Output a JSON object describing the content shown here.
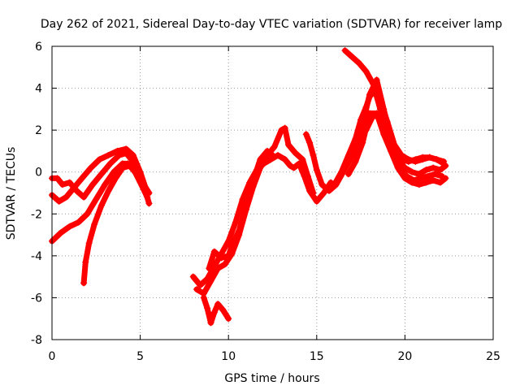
{
  "chart_data": {
    "type": "scatter",
    "title": "Day 262 of 2021, Sidereal Day-to-day VTEC variation (SDTVAR) for receiver lamp",
    "xlabel": "GPS time / hours",
    "ylabel": "SDTVAR / TECUs",
    "xlim": [
      0,
      25
    ],
    "ylim": [
      -8,
      6
    ],
    "xticks": [
      "0",
      "5",
      "10",
      "15",
      "20",
      "25"
    ],
    "yticks": [
      "-8",
      "-6",
      "-4",
      "-2",
      "0",
      "2",
      "4",
      "6"
    ],
    "grid": true,
    "marker": "+",
    "color": "#ff0000",
    "series": [
      {
        "x": [
          0.0,
          0.5,
          1.0,
          1.5,
          2.0,
          2.5,
          3.0,
          3.5,
          4.0,
          4.3,
          4.7,
          5.0,
          5.4
        ],
        "y": [
          -3.3,
          -2.9,
          -2.6,
          -2.4,
          -2.0,
          -1.3,
          -0.6,
          0.0,
          0.4,
          0.4,
          0.0,
          -0.5,
          -1.2
        ]
      },
      {
        "x": [
          0.0,
          0.4,
          0.8,
          1.2,
          1.7,
          2.2,
          2.7,
          3.2,
          3.7,
          4.2,
          4.6,
          5.0,
          5.4
        ],
        "y": [
          -1.1,
          -1.4,
          -1.2,
          -0.8,
          -0.3,
          0.2,
          0.6,
          0.8,
          1.0,
          1.1,
          0.8,
          0.0,
          -1.0
        ]
      },
      {
        "x": [
          0.0,
          0.3,
          0.6,
          1.0,
          1.4,
          1.8,
          2.3,
          2.8,
          3.3,
          3.8,
          4.2,
          4.7,
          5.1,
          5.5
        ],
        "y": [
          -0.3,
          -0.3,
          -0.6,
          -0.5,
          -0.9,
          -1.2,
          -0.6,
          -0.1,
          0.4,
          0.8,
          0.9,
          0.4,
          -0.4,
          -1.5
        ]
      },
      {
        "x": [
          1.8,
          1.9,
          2.1,
          2.4,
          2.8,
          3.2,
          3.6,
          4.0,
          4.4,
          4.8,
          5.2,
          5.5
        ],
        "y": [
          -5.3,
          -4.3,
          -3.4,
          -2.5,
          -1.6,
          -0.9,
          -0.3,
          0.2,
          0.3,
          -0.1,
          -0.6,
          -1.0
        ]
      },
      {
        "x": [
          8.0,
          8.4,
          8.8,
          9.2,
          9.6,
          10.0,
          10.4,
          10.8,
          11.2,
          11.6,
          12.0,
          12.4,
          12.8,
          13.2,
          13.5,
          13.7,
          14.0,
          14.3,
          14.6,
          15.0,
          15.4,
          15.8
        ],
        "y": [
          -5.0,
          -5.4,
          -5.1,
          -4.5,
          -3.9,
          -3.3,
          -2.4,
          -1.3,
          -0.5,
          0.1,
          0.4,
          0.6,
          0.8,
          0.6,
          0.3,
          0.2,
          0.4,
          -0.2,
          -0.9,
          -1.4,
          -1.0,
          -0.5
        ]
      },
      {
        "x": [
          8.2,
          8.6,
          9.0,
          9.4,
          9.8,
          10.2,
          10.6,
          11.0,
          11.4,
          11.8,
          12.2,
          12.6,
          13.0,
          13.2,
          13.4,
          13.8,
          14.2,
          14.5,
          14.8
        ],
        "y": [
          -5.6,
          -5.8,
          -5.2,
          -4.6,
          -4.4,
          -3.9,
          -3.0,
          -1.8,
          -0.7,
          0.2,
          0.8,
          1.2,
          2.0,
          2.1,
          1.3,
          0.9,
          0.6,
          -0.2,
          -1.0
        ]
      },
      {
        "x": [
          8.6,
          8.8,
          9.0,
          9.2,
          9.4,
          9.7,
          10.0
        ],
        "y": [
          -6.0,
          -6.5,
          -7.2,
          -6.7,
          -6.3,
          -6.6,
          -7.0
        ]
      },
      {
        "x": [
          8.9,
          9.2,
          9.6,
          10.0,
          10.2,
          10.6,
          11.0,
          11.4,
          11.8,
          12.2,
          12.5
        ],
        "y": [
          -4.6,
          -3.8,
          -4.1,
          -4.0,
          -3.5,
          -2.8,
          -1.6,
          -0.4,
          0.6,
          1.0,
          0.8
        ]
      },
      {
        "x": [
          14.4,
          14.6,
          14.8,
          15.0,
          15.3,
          15.7,
          16.1,
          16.5,
          16.9,
          17.3,
          17.6,
          18.0,
          18.4,
          18.8,
          19.2,
          19.6,
          20.0,
          20.4,
          20.8,
          21.2,
          21.6,
          22.0,
          22.3
        ],
        "y": [
          1.8,
          1.4,
          0.8,
          0.1,
          -0.6,
          -0.9,
          -0.6,
          0.0,
          0.6,
          1.3,
          2.3,
          3.7,
          4.4,
          3.0,
          1.6,
          0.6,
          0.2,
          0.0,
          -0.1,
          0.1,
          0.2,
          0.1,
          0.3
        ]
      },
      {
        "x": [
          16.0,
          16.4,
          16.8,
          17.2,
          17.5,
          17.8,
          18.0,
          18.3,
          18.6,
          18.9,
          19.3,
          19.7,
          20.1,
          20.5,
          20.9,
          21.3,
          21.7,
          22.1
        ],
        "y": [
          -0.6,
          0.0,
          0.8,
          1.6,
          2.5,
          3.1,
          3.6,
          3.9,
          3.0,
          2.1,
          1.0,
          0.2,
          -0.2,
          -0.4,
          -0.3,
          -0.2,
          -0.1,
          -0.2
        ]
      },
      {
        "x": [
          16.8,
          17.2,
          17.6,
          18.0,
          18.4,
          18.8,
          19.2,
          19.6,
          20.0,
          20.4,
          20.8,
          21.2,
          21.6,
          22.0,
          22.3
        ],
        "y": [
          -0.1,
          0.5,
          1.4,
          2.8,
          2.8,
          1.8,
          1.0,
          0.2,
          -0.3,
          -0.5,
          -0.6,
          -0.5,
          -0.4,
          -0.5,
          -0.3
        ]
      },
      {
        "x": [
          16.6,
          17.0,
          17.4,
          17.8,
          18.2,
          18.6,
          19.0,
          19.4,
          19.8,
          20.2,
          20.6,
          21.0,
          21.4,
          21.8,
          22.2
        ],
        "y": [
          5.8,
          5.5,
          5.2,
          4.8,
          4.2,
          3.4,
          2.4,
          1.3,
          0.8,
          0.6,
          0.5,
          0.6,
          0.7,
          0.6,
          0.5
        ]
      },
      {
        "x": [
          17.8,
          18.2,
          18.6,
          19.0,
          19.4,
          19.8,
          20.2,
          20.6,
          21.0,
          21.4,
          21.8,
          22.2
        ],
        "y": [
          2.0,
          2.7,
          2.6,
          2.0,
          1.2,
          0.6,
          0.5,
          0.6,
          0.7,
          0.7,
          0.6,
          0.4
        ]
      }
    ]
  }
}
